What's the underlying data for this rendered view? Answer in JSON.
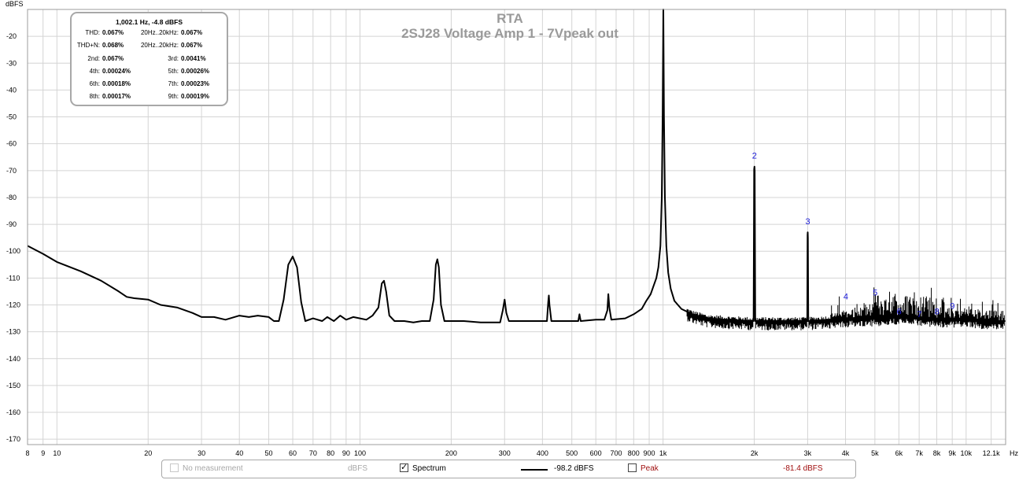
{
  "chart_data": {
    "type": "line",
    "title": "RTA",
    "subtitle": "2SJ28 Voltage Amp 1 - 7Vpeak out",
    "ylabel": "dBFS",
    "xunit": "Hz",
    "xscale": "log",
    "xlim": [
      8,
      13500
    ],
    "ylim": [
      -172,
      -10
    ],
    "grid": true,
    "x_ticks": [
      {
        "v": 8,
        "label": "8"
      },
      {
        "v": 9,
        "label": "9"
      },
      {
        "v": 10,
        "label": "10"
      },
      {
        "v": 20,
        "label": "20"
      },
      {
        "v": 30,
        "label": "30"
      },
      {
        "v": 40,
        "label": "40"
      },
      {
        "v": 50,
        "label": "50"
      },
      {
        "v": 60,
        "label": "60"
      },
      {
        "v": 70,
        "label": "70"
      },
      {
        "v": 80,
        "label": "80"
      },
      {
        "v": 90,
        "label": "90"
      },
      {
        "v": 100,
        "label": "100"
      },
      {
        "v": 200,
        "label": "200"
      },
      {
        "v": 300,
        "label": "300"
      },
      {
        "v": 400,
        "label": "400"
      },
      {
        "v": 500,
        "label": "500"
      },
      {
        "v": 600,
        "label": "600"
      },
      {
        "v": 700,
        "label": "700"
      },
      {
        "v": 800,
        "label": "800"
      },
      {
        "v": 900,
        "label": "900"
      },
      {
        "v": 1000,
        "label": "1k"
      },
      {
        "v": 2000,
        "label": "2k"
      },
      {
        "v": 3000,
        "label": "3k"
      },
      {
        "v": 4000,
        "label": "4k"
      },
      {
        "v": 5000,
        "label": "5k"
      },
      {
        "v": 6000,
        "label": "6k"
      },
      {
        "v": 7000,
        "label": "7k"
      },
      {
        "v": 8000,
        "label": "8k"
      },
      {
        "v": 9000,
        "label": "9k"
      },
      {
        "v": 10000,
        "label": "10k"
      },
      {
        "v": 12100,
        "label": "12.1k"
      }
    ],
    "y_ticks": [
      -20,
      -30,
      -40,
      -50,
      -60,
      -70,
      -80,
      -90,
      -100,
      -110,
      -120,
      -130,
      -140,
      -150,
      -160,
      -170
    ],
    "series": [
      {
        "color": "#000000",
        "points": [
          [
            8,
            -98
          ],
          [
            9,
            -101
          ],
          [
            10,
            -104
          ],
          [
            12,
            -107.5
          ],
          [
            14,
            -111
          ],
          [
            16,
            -115
          ],
          [
            17,
            -117
          ],
          [
            18,
            -117.5
          ],
          [
            20,
            -118
          ],
          [
            22,
            -120
          ],
          [
            25,
            -121
          ],
          [
            28,
            -123
          ],
          [
            30,
            -124.5
          ],
          [
            33,
            -124.5
          ],
          [
            36,
            -125.5
          ],
          [
            40,
            -124
          ],
          [
            43,
            -124.5
          ],
          [
            46,
            -124
          ],
          [
            50,
            -124.5
          ],
          [
            52,
            -126
          ],
          [
            54,
            -126
          ],
          [
            56,
            -118
          ],
          [
            58,
            -105
          ],
          [
            60,
            -102
          ],
          [
            62,
            -106
          ],
          [
            64,
            -119
          ],
          [
            66,
            -126
          ],
          [
            70,
            -125
          ],
          [
            75,
            -126
          ],
          [
            78,
            -124.5
          ],
          [
            82,
            -126
          ],
          [
            86,
            -124
          ],
          [
            90,
            -125.5
          ],
          [
            95,
            -124.5
          ],
          [
            100,
            -125
          ],
          [
            105,
            -125.5
          ],
          [
            110,
            -124
          ],
          [
            115,
            -121
          ],
          [
            118,
            -112
          ],
          [
            120,
            -111
          ],
          [
            122,
            -115
          ],
          [
            125,
            -124
          ],
          [
            130,
            -126
          ],
          [
            140,
            -126
          ],
          [
            150,
            -126.5
          ],
          [
            160,
            -126
          ],
          [
            170,
            -126
          ],
          [
            175,
            -118
          ],
          [
            178,
            -105
          ],
          [
            180,
            -103
          ],
          [
            182,
            -106
          ],
          [
            185,
            -120
          ],
          [
            190,
            -126
          ],
          [
            220,
            -126
          ],
          [
            250,
            -126.5
          ],
          [
            290,
            -126.5
          ],
          [
            296,
            -122
          ],
          [
            300,
            -118
          ],
          [
            304,
            -123
          ],
          [
            310,
            -126
          ],
          [
            380,
            -126
          ],
          [
            414,
            -126
          ],
          [
            418,
            -119
          ],
          [
            420,
            -116.5
          ],
          [
            422,
            -120
          ],
          [
            428,
            -126
          ],
          [
            500,
            -126
          ],
          [
            525,
            -126
          ],
          [
            530,
            -123.5
          ],
          [
            535,
            -126
          ],
          [
            600,
            -125.5
          ],
          [
            640,
            -125.5
          ],
          [
            655,
            -122
          ],
          [
            660,
            -116
          ],
          [
            665,
            -121
          ],
          [
            675,
            -125.5
          ],
          [
            750,
            -125
          ],
          [
            800,
            -123.5
          ],
          [
            850,
            -121.5
          ],
          [
            880,
            -118.5
          ],
          [
            910,
            -116
          ],
          [
            930,
            -113
          ],
          [
            950,
            -110
          ],
          [
            965,
            -106
          ],
          [
            980,
            -98
          ],
          [
            990,
            -80
          ],
          [
            997,
            -50
          ],
          [
            1002,
            -10
          ],
          [
            1007,
            -50
          ],
          [
            1014,
            -80
          ],
          [
            1025,
            -98
          ],
          [
            1040,
            -108
          ],
          [
            1060,
            -114
          ],
          [
            1090,
            -118.5
          ],
          [
            1150,
            -121.5
          ],
          [
            1250,
            -123.5
          ],
          [
            1400,
            -125
          ],
          [
            1600,
            -125.5
          ],
          [
            1990,
            -126
          ],
          [
            1998,
            -69.5
          ],
          [
            2002,
            -68.5
          ],
          [
            2006,
            -70
          ],
          [
            2014,
            -126
          ],
          [
            2500,
            -126
          ],
          [
            2990,
            -126
          ],
          [
            2998,
            -94
          ],
          [
            3002,
            -93
          ],
          [
            3006,
            -95
          ],
          [
            3014,
            -126
          ],
          [
            3500,
            -125.5
          ],
          [
            4000,
            -125
          ],
          [
            5000,
            -124.5
          ],
          [
            6000,
            -124
          ],
          [
            7000,
            -124.5
          ],
          [
            8000,
            -125
          ],
          [
            10000,
            -125
          ],
          [
            12100,
            -126
          ],
          [
            13500,
            -126
          ]
        ]
      }
    ],
    "harmonic_labels": [
      {
        "text": "2",
        "x": 2002,
        "y": -65.5
      },
      {
        "text": "3",
        "x": 3002,
        "y": -90
      },
      {
        "text": "4",
        "x": 4010,
        "y": -118
      },
      {
        "text": "5",
        "x": 5010,
        "y": -116.5
      },
      {
        "text": "6",
        "x": 6010,
        "y": -123.5
      },
      {
        "text": "7",
        "x": 7010,
        "y": -124.5
      },
      {
        "text": "8",
        "x": 8010,
        "y": -123.5
      },
      {
        "text": "9",
        "x": 9010,
        "y": -121.5
      }
    ]
  },
  "info": {
    "header": "1,002.1 Hz, -4.8 dBFS",
    "rows": [
      [
        {
          "label": "THD:",
          "value": "0.067%"
        },
        {
          "label": "20Hz..20kHz:",
          "value": "0.067%"
        }
      ],
      [
        {
          "label": "THD+N:",
          "value": "0.068%"
        },
        {
          "label": "20Hz..20kHz:",
          "value": "0.067%"
        }
      ],
      [
        {
          "label": "2nd:",
          "value": "0.067%"
        },
        {
          "label": "3rd:",
          "value": "0.0041%"
        }
      ],
      [
        {
          "label": "4th:",
          "value": "0.00024%"
        },
        {
          "label": "5th:",
          "value": "0.00026%"
        }
      ],
      [
        {
          "label": "6th:",
          "value": "0.00018%"
        },
        {
          "label": "7th:",
          "value": "0.00023%"
        }
      ],
      [
        {
          "label": "8th:",
          "value": "0.00017%"
        },
        {
          "label": "9th:",
          "value": "0.00019%"
        }
      ]
    ]
  },
  "legend": {
    "no_measurement": "No measurement",
    "units": "dBFS",
    "spectrum_label": "Spectrum",
    "spectrum_checked": true,
    "spectrum_value": "-98.2 dBFS",
    "peak_label": "Peak",
    "peak_checked": false,
    "peak_value": "-81.4 dBFS",
    "peak_color": "#a01010",
    "disabled_color": "#a8a8a8"
  },
  "colors": {
    "grid": "#d4d4d4",
    "axis": "#9c9c9c",
    "trace": "#000000",
    "harmonic_label": "#1a1ad8",
    "title": "#9a9a9a"
  }
}
